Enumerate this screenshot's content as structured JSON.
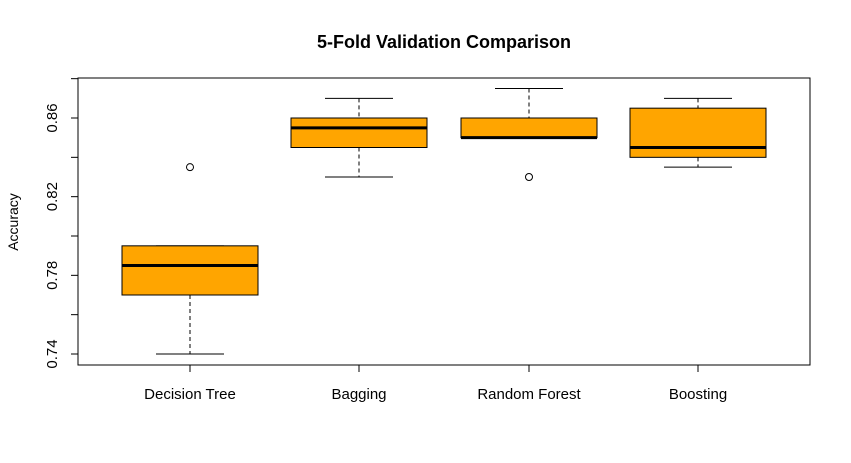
{
  "chart_data": {
    "type": "boxplot",
    "title": "5-Fold Validation Comparison",
    "xlabel": "",
    "ylabel": "Accuracy",
    "ylim": [
      0.735,
      0.885
    ],
    "yticks": [
      0.74,
      0.78,
      0.82,
      0.86
    ],
    "ytick_labels": [
      "0.74",
      "0.78",
      "0.82",
      "0.86"
    ],
    "categories": [
      "Decision Tree",
      "Bagging",
      "Random Forest",
      "Boosting"
    ],
    "fill_color": "#FFA500",
    "grid": false,
    "boxes": [
      {
        "name": "Decision Tree",
        "whisker_low": 0.74,
        "q1": 0.77,
        "median": 0.785,
        "q3": 0.795,
        "whisker_high": 0.795,
        "outliers": [
          0.835
        ]
      },
      {
        "name": "Bagging",
        "whisker_low": 0.83,
        "q1": 0.845,
        "median": 0.855,
        "q3": 0.86,
        "whisker_high": 0.87,
        "outliers": []
      },
      {
        "name": "Random Forest",
        "whisker_low": 0.85,
        "q1": 0.85,
        "median": 0.85,
        "q3": 0.86,
        "whisker_high": 0.875,
        "outliers": [
          0.83
        ]
      },
      {
        "name": "Boosting",
        "whisker_low": 0.835,
        "q1": 0.84,
        "median": 0.845,
        "q3": 0.865,
        "whisker_high": 0.87,
        "outliers": []
      }
    ]
  }
}
